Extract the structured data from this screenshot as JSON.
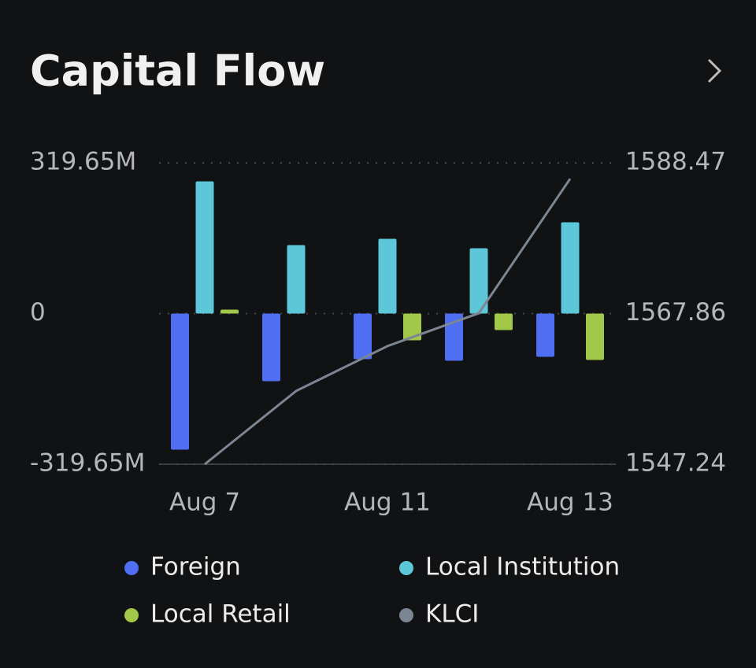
{
  "header": {
    "title": "Capital Flow"
  },
  "chart_data": {
    "type": "bar",
    "categories": [
      "Aug 7",
      null,
      "Aug 11",
      null,
      "Aug 13"
    ],
    "series": [
      {
        "name": "Foreign",
        "color": "#4f6ef2",
        "values": [
          -288.7,
          -143.5,
          -96.8,
          -100.1,
          -91.8
        ]
      },
      {
        "name": "Local Institution",
        "color": "#5cc7d8",
        "values": [
          280.4,
          145.2,
          158.6,
          138.5,
          193.6
        ]
      },
      {
        "name": "Local Retail",
        "color": "#a2c84a",
        "values": [
          8.3,
          0,
          -56.7,
          -35,
          -98.5
        ]
      },
      {
        "name": "KLCI",
        "color": "#7c8692",
        "type": "line",
        "axis": "y2",
        "values": [
          1547.24,
          1557.26,
          1563.4,
          1567.9,
          1586.3
        ]
      }
    ],
    "ylim": [
      -319.65,
      319.65
    ],
    "yticks": [
      {
        "value": 319.65,
        "label": "319.65M"
      },
      0,
      {
        "value": -319.65,
        "label": "-319.65M"
      }
    ],
    "y2lim": [
      1547.24,
      1588.47
    ],
    "y2ticks": [
      1588.47,
      1567.86,
      1547.24
    ],
    "grid": true
  }
}
